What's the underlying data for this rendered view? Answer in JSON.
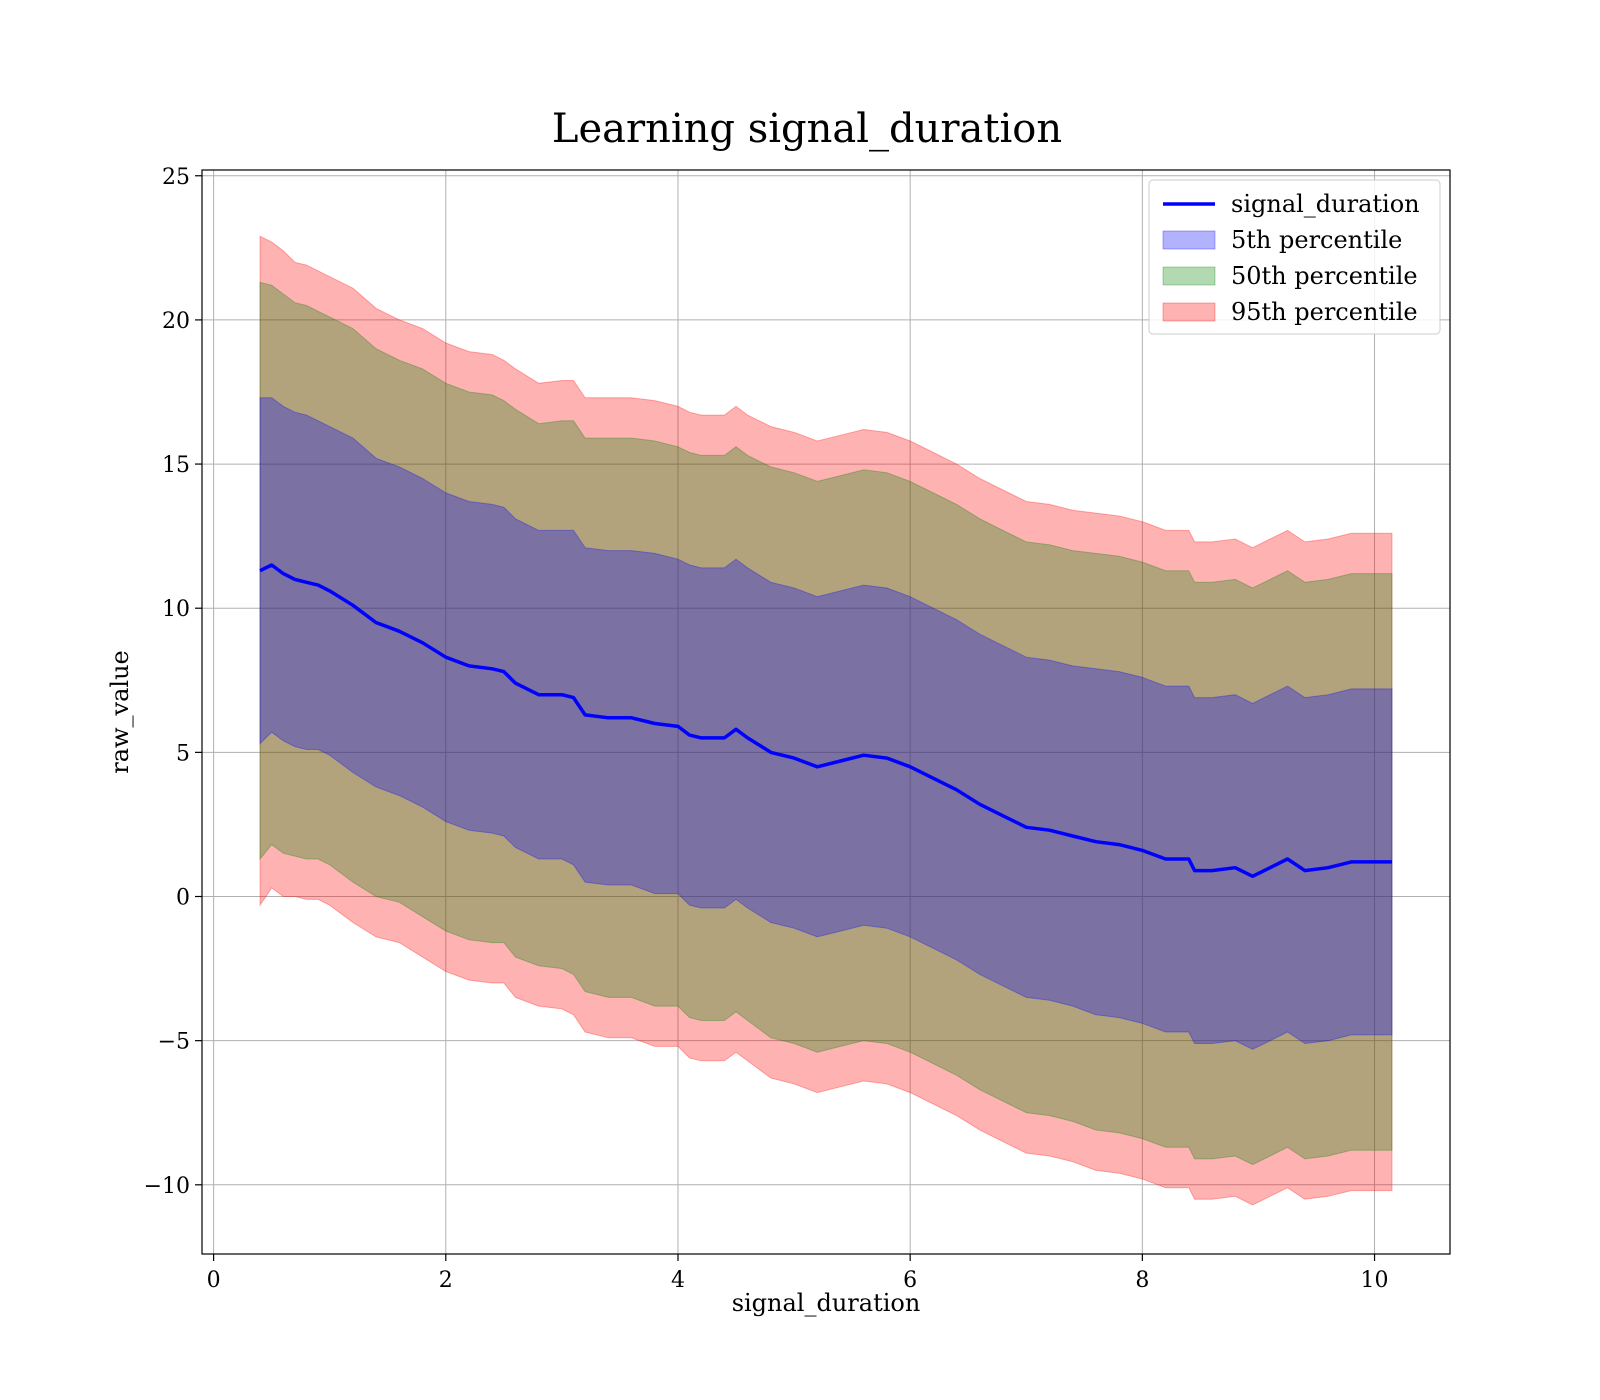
{
  "chart_data": {
    "type": "line",
    "title": "Learning signal_duration",
    "xlabel": "signal_duration",
    "ylabel": "raw_value",
    "xlim": [
      -0.1,
      10.65
    ],
    "ylim": [
      -12.4,
      25.2
    ],
    "xticks": [
      0,
      2,
      4,
      6,
      8,
      10
    ],
    "yticks": [
      -10,
      -5,
      0,
      5,
      10,
      15,
      20,
      25
    ],
    "xtick_labels": [
      "0",
      "2",
      "4",
      "6",
      "8",
      "10"
    ],
    "ytick_labels": [
      "−10",
      "−5",
      "0",
      "5",
      "10",
      "15",
      "20",
      "25"
    ],
    "grid": true,
    "legend_position": "top-right",
    "line": {
      "name": "signal_duration",
      "color": "#0000ff",
      "x": [
        0.4,
        0.5,
        0.6,
        0.7,
        0.8,
        0.9,
        1.0,
        1.2,
        1.4,
        1.6,
        1.8,
        2.0,
        2.2,
        2.4,
        2.5,
        2.6,
        2.8,
        3.0,
        3.1,
        3.2,
        3.4,
        3.6,
        3.8,
        4.0,
        4.1,
        4.2,
        4.4,
        4.5,
        4.6,
        4.8,
        5.0,
        5.2,
        5.4,
        5.6,
        5.8,
        6.0,
        6.2,
        6.4,
        6.6,
        6.8,
        7.0,
        7.2,
        7.4,
        7.6,
        7.8,
        8.0,
        8.2,
        8.4,
        8.45,
        8.6,
        8.8,
        8.95,
        9.1,
        9.25,
        9.4,
        9.6,
        9.8,
        10.0,
        10.15
      ],
      "y": [
        11.3,
        11.5,
        11.2,
        11.0,
        10.9,
        10.8,
        10.6,
        10.1,
        9.5,
        9.2,
        8.8,
        8.3,
        8.0,
        7.9,
        7.8,
        7.4,
        7.0,
        7.0,
        6.9,
        6.3,
        6.2,
        6.2,
        6.0,
        5.9,
        5.6,
        5.5,
        5.5,
        5.8,
        5.5,
        5.0,
        4.8,
        4.5,
        4.7,
        4.9,
        4.8,
        4.5,
        4.1,
        3.7,
        3.2,
        2.8,
        2.4,
        2.3,
        2.1,
        1.9,
        1.8,
        1.6,
        1.3,
        1.3,
        0.9,
        0.9,
        1.0,
        0.7,
        1.0,
        1.3,
        0.9,
        1.0,
        1.2,
        1.2,
        1.2
      ]
    },
    "bands": [
      {
        "name": "95th percentile",
        "color": "#ff0000",
        "opacity": 0.3,
        "half_width": [
          11.6,
          11.2,
          11.2,
          11.0,
          11.0,
          10.9,
          10.9,
          11.0,
          10.9,
          10.8,
          10.9,
          10.9,
          10.9,
          10.9,
          10.8,
          10.9,
          10.8,
          10.9,
          11.0,
          11.0,
          11.1,
          11.1,
          11.2,
          11.1,
          11.2,
          11.2,
          11.2,
          11.2,
          11.2,
          11.3,
          11.3,
          11.3,
          11.3,
          11.3,
          11.3,
          11.3,
          11.3,
          11.3,
          11.3,
          11.3,
          11.3,
          11.3,
          11.3,
          11.4,
          11.4,
          11.4,
          11.4,
          11.4,
          11.4,
          11.4,
          11.4,
          11.4,
          11.4,
          11.4,
          11.4,
          11.4,
          11.4,
          11.4,
          11.4
        ]
      },
      {
        "name": "50th percentile",
        "color": "#008000",
        "opacity": 0.3,
        "half_width": [
          10.0,
          9.7,
          9.7,
          9.6,
          9.6,
          9.5,
          9.5,
          9.6,
          9.5,
          9.4,
          9.5,
          9.5,
          9.5,
          9.5,
          9.4,
          9.5,
          9.4,
          9.5,
          9.6,
          9.6,
          9.7,
          9.7,
          9.8,
          9.7,
          9.8,
          9.8,
          9.8,
          9.8,
          9.8,
          9.9,
          9.9,
          9.9,
          9.9,
          9.9,
          9.9,
          9.9,
          9.9,
          9.9,
          9.9,
          9.9,
          9.9,
          9.9,
          9.9,
          10.0,
          10.0,
          10.0,
          10.0,
          10.0,
          10.0,
          10.0,
          10.0,
          10.0,
          10.0,
          10.0,
          10.0,
          10.0,
          10.0,
          10.0,
          10.0
        ]
      },
      {
        "name": "5th percentile",
        "color": "#0000ff",
        "opacity": 0.3,
        "half_width": [
          6.0,
          5.8,
          5.8,
          5.8,
          5.8,
          5.7,
          5.7,
          5.8,
          5.7,
          5.7,
          5.7,
          5.7,
          5.7,
          5.7,
          5.7,
          5.7,
          5.7,
          5.7,
          5.8,
          5.8,
          5.8,
          5.8,
          5.9,
          5.8,
          5.9,
          5.9,
          5.9,
          5.9,
          5.9,
          5.9,
          5.9,
          5.9,
          5.9,
          5.9,
          5.9,
          5.9,
          5.9,
          5.9,
          5.9,
          5.9,
          5.9,
          5.9,
          5.9,
          6.0,
          6.0,
          6.0,
          6.0,
          6.0,
          6.0,
          6.0,
          6.0,
          6.0,
          6.0,
          6.0,
          6.0,
          6.0,
          6.0,
          6.0,
          6.0
        ]
      }
    ],
    "legend": [
      {
        "label": "signal_duration",
        "kind": "line",
        "color": "#0000ff"
      },
      {
        "label": "5th percentile",
        "kind": "patch",
        "color": "#0000ff"
      },
      {
        "label": "50th percentile",
        "kind": "patch",
        "color": "#008000"
      },
      {
        "label": "95th percentile",
        "kind": "patch",
        "color": "#ff0000"
      }
    ]
  }
}
